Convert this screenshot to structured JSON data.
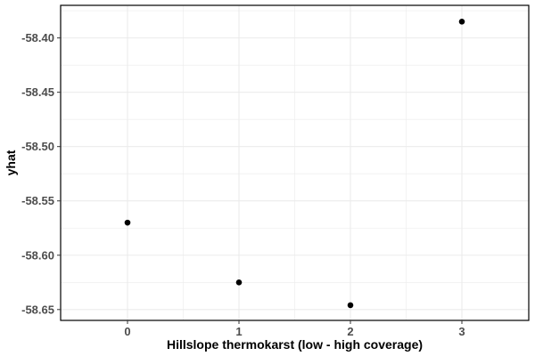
{
  "chart_data": {
    "type": "scatter",
    "title": "",
    "xlabel": "Hillslope thermokarst (low - high coverage)",
    "ylabel": "yhat",
    "x": [
      0,
      1,
      2,
      3
    ],
    "y": [
      -58.57,
      -58.625,
      -58.646,
      -58.385
    ],
    "xlim": [
      -0.6,
      3.6
    ],
    "ylim": [
      -58.66,
      -58.37
    ],
    "x_ticks": [
      0,
      1,
      2,
      3
    ],
    "x_tick_labels": [
      "0",
      "1",
      "2",
      "3"
    ],
    "y_ticks": [
      -58.4,
      -58.45,
      -58.5,
      -58.55,
      -58.6,
      -58.65
    ],
    "y_tick_labels": [
      "-58.40",
      "-58.45",
      "-58.50",
      "-58.55",
      "-58.60",
      "-58.65"
    ],
    "grid": true,
    "legend": "none",
    "colors": {
      "point": "#000000",
      "grid": "#ebebeb",
      "panel_border": "#000000",
      "tick_text": "#4d4d4d"
    }
  }
}
